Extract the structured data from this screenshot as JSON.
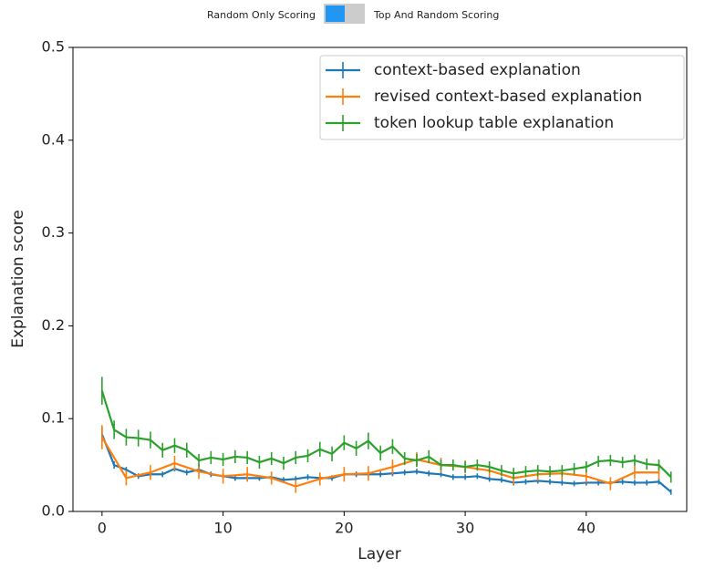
{
  "toggle": {
    "left_label": "Random Only Scoring",
    "right_label": "Top And Random Scoring"
  },
  "chart_data": {
    "type": "line",
    "xlabel": "Layer",
    "ylabel": "Explanation score",
    "x": [
      0,
      1,
      2,
      3,
      4,
      5,
      6,
      7,
      8,
      9,
      10,
      11,
      12,
      13,
      14,
      15,
      16,
      17,
      18,
      19,
      20,
      21,
      22,
      23,
      24,
      25,
      26,
      27,
      28,
      29,
      30,
      31,
      32,
      33,
      34,
      35,
      36,
      37,
      38,
      39,
      40,
      41,
      42,
      43,
      44,
      45,
      46,
      47
    ],
    "xlim": [
      -2.4,
      48.3
    ],
    "xticks": [
      0,
      10,
      20,
      30,
      40
    ],
    "ylim": [
      0,
      0.5
    ],
    "yticks": [
      {
        "value": 0,
        "label": "0.0"
      },
      0.1,
      0.2,
      0.3,
      0.4,
      0.5
    ],
    "legend": "upper right",
    "series": [
      {
        "name": "context-based explanation",
        "color": "#1f77b4",
        "values": [
          0.083,
          0.05,
          0.045,
          0.038,
          0.04,
          0.04,
          0.046,
          0.042,
          0.045,
          0.04,
          0.038,
          0.036,
          0.036,
          0.036,
          0.037,
          0.034,
          0.035,
          0.037,
          0.036,
          0.036,
          0.04,
          0.04,
          0.04,
          0.04,
          0.041,
          0.042,
          0.043,
          0.041,
          0.04,
          0.037,
          0.037,
          0.038,
          0.035,
          0.034,
          0.031,
          0.032,
          0.033,
          0.032,
          0.031,
          0.03,
          0.031,
          0.031,
          0.031,
          0.032,
          0.031,
          0.031,
          0.032,
          0.021
        ],
        "errors": [
          0.008,
          0.004,
          0.003,
          0.003,
          0.003,
          0.003,
          0.003,
          0.003,
          0.003,
          0.003,
          0.003,
          0.003,
          0.003,
          0.003,
          0.003,
          0.003,
          0.003,
          0.003,
          0.003,
          0.003,
          0.003,
          0.003,
          0.003,
          0.003,
          0.003,
          0.003,
          0.003,
          0.003,
          0.003,
          0.003,
          0.003,
          0.003,
          0.003,
          0.003,
          0.003,
          0.003,
          0.003,
          0.003,
          0.003,
          0.003,
          0.003,
          0.003,
          0.003,
          0.003,
          0.003,
          0.003,
          0.003,
          0.003
        ]
      },
      {
        "name": "revised context-based explanation",
        "color": "#ff7f0e",
        "x": [
          0,
          2,
          4,
          6,
          8,
          10,
          12,
          14,
          16,
          18,
          20,
          22,
          24,
          26,
          28,
          30,
          32,
          34,
          36,
          38,
          40,
          42,
          44,
          46
        ],
        "values": [
          0.08,
          0.036,
          0.042,
          0.052,
          0.043,
          0.038,
          0.04,
          0.036,
          0.027,
          0.035,
          0.04,
          0.041,
          0.048,
          0.056,
          0.05,
          0.048,
          0.044,
          0.036,
          0.04,
          0.041,
          0.038,
          0.03,
          0.042,
          0.042
        ],
        "errors": [
          0.013,
          0.008,
          0.008,
          0.008,
          0.008,
          0.008,
          0.008,
          0.007,
          0.007,
          0.007,
          0.008,
          0.008,
          0.008,
          0.008,
          0.008,
          0.007,
          0.007,
          0.007,
          0.007,
          0.007,
          0.007,
          0.007,
          0.007,
          0.007
        ]
      },
      {
        "name": "token lookup table explanation",
        "color": "#2ca02c",
        "values": [
          0.13,
          0.088,
          0.08,
          0.079,
          0.077,
          0.066,
          0.071,
          0.066,
          0.055,
          0.058,
          0.056,
          0.059,
          0.058,
          0.053,
          0.057,
          0.052,
          0.058,
          0.06,
          0.067,
          0.062,
          0.074,
          0.068,
          0.076,
          0.063,
          0.07,
          0.057,
          0.055,
          0.059,
          0.05,
          0.05,
          0.048,
          0.05,
          0.048,
          0.044,
          0.041,
          0.043,
          0.044,
          0.043,
          0.044,
          0.046,
          0.048,
          0.054,
          0.055,
          0.053,
          0.055,
          0.051,
          0.05,
          0.037
        ],
        "errors": [
          0.015,
          0.01,
          0.009,
          0.009,
          0.009,
          0.008,
          0.008,
          0.008,
          0.007,
          0.007,
          0.007,
          0.007,
          0.007,
          0.007,
          0.007,
          0.007,
          0.007,
          0.007,
          0.008,
          0.008,
          0.008,
          0.008,
          0.009,
          0.008,
          0.008,
          0.007,
          0.007,
          0.007,
          0.006,
          0.006,
          0.006,
          0.006,
          0.006,
          0.006,
          0.006,
          0.006,
          0.006,
          0.006,
          0.006,
          0.006,
          0.006,
          0.006,
          0.006,
          0.006,
          0.006,
          0.006,
          0.006,
          0.006
        ]
      }
    ]
  }
}
